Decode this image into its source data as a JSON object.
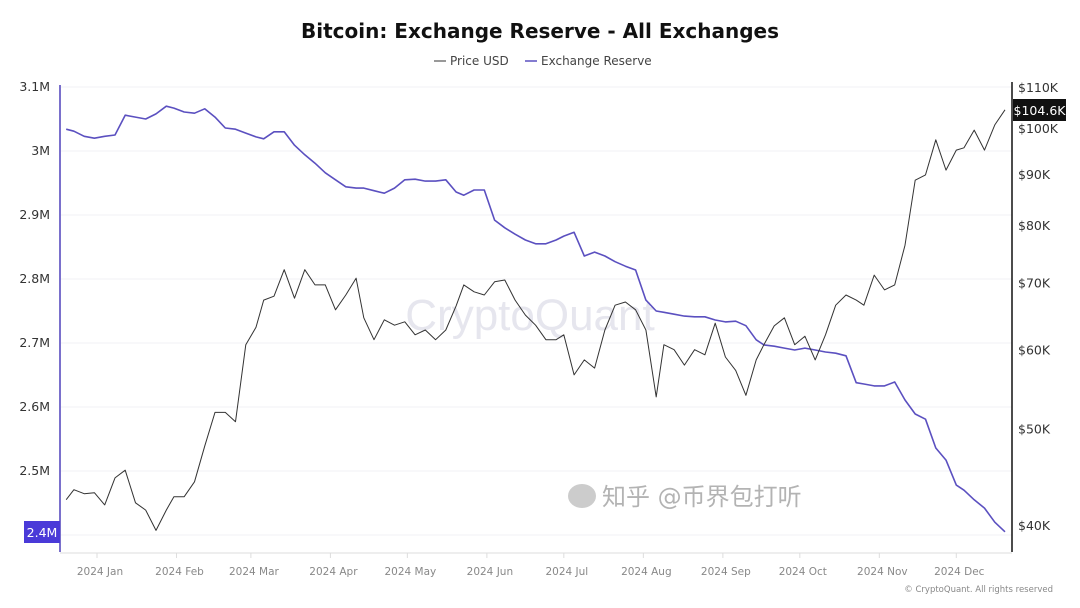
{
  "chart_data": {
    "type": "line",
    "title": "Bitcoin: Exchange Reserve - All Exchanges",
    "legend": [
      "Price USD",
      "Exchange Reserve"
    ],
    "legend_position": "top-center",
    "x_tick_labels": [
      "2024 Jan",
      "2024 Feb",
      "2024 Mar",
      "2024 Apr",
      "2024 May",
      "2024 Jun",
      "2024 Jul",
      "2024 Aug",
      "2024 Sep",
      "2024 Oct",
      "2024 Nov",
      "2024 Dec"
    ],
    "x_tick_dates": [
      "2024-01-01",
      "2024-02-01",
      "2024-03-01",
      "2024-04-01",
      "2024-05-01",
      "2024-06-01",
      "2024-07-01",
      "2024-08-01",
      "2024-09-01",
      "2024-10-01",
      "2024-11-01",
      "2024-12-01"
    ],
    "left_axis": {
      "ticks": [
        "2.4M",
        "2.5M",
        "2.6M",
        "2.7M",
        "2.8M",
        "2.9M",
        "3M",
        "3.1M"
      ],
      "tick_values": [
        2.4,
        2.5,
        2.6,
        2.7,
        2.8,
        2.9,
        3.0,
        3.1
      ],
      "range": [
        2.4,
        3.1
      ],
      "unit": "M BTC",
      "color": "#5b50c0"
    },
    "right_axis": {
      "ticks": [
        "$40K",
        "$50K",
        "$60K",
        "$70K",
        "$80K",
        "$90K",
        "$100K",
        "$110K"
      ],
      "tick_values": [
        40,
        50,
        60,
        70,
        80,
        90,
        100,
        110
      ],
      "range": [
        40,
        110
      ],
      "scale": "log",
      "unit": "K USD"
    },
    "last_reserve_label": "2.4M",
    "last_price_label": "$104.6K",
    "grid": true,
    "colors": {
      "price": "#333333",
      "reserve": "#5b50c0",
      "reserve_badge": "#4a3ad8",
      "price_badge": "#111111"
    },
    "x": [
      "2023-12-20",
      "2023-12-23",
      "2023-12-27",
      "2023-12-31",
      "2024-01-04",
      "2024-01-08",
      "2024-01-12",
      "2024-01-16",
      "2024-01-20",
      "2024-01-24",
      "2024-01-28",
      "2024-01-31",
      "2024-02-04",
      "2024-02-08",
      "2024-02-12",
      "2024-02-16",
      "2024-02-20",
      "2024-02-24",
      "2024-02-28",
      "2024-03-03",
      "2024-03-06",
      "2024-03-10",
      "2024-03-14",
      "2024-03-18",
      "2024-03-22",
      "2024-03-26",
      "2024-03-30",
      "2024-04-03",
      "2024-04-07",
      "2024-04-11",
      "2024-04-14",
      "2024-04-18",
      "2024-04-22",
      "2024-04-26",
      "2024-04-30",
      "2024-05-04",
      "2024-05-08",
      "2024-05-12",
      "2024-05-16",
      "2024-05-20",
      "2024-05-23",
      "2024-05-27",
      "2024-05-31",
      "2024-06-04",
      "2024-06-08",
      "2024-06-12",
      "2024-06-16",
      "2024-06-20",
      "2024-06-24",
      "2024-06-28",
      "2024-07-01",
      "2024-07-05",
      "2024-07-09",
      "2024-07-13",
      "2024-07-17",
      "2024-07-21",
      "2024-07-25",
      "2024-07-29",
      "2024-08-02",
      "2024-08-06",
      "2024-08-09",
      "2024-08-13",
      "2024-08-17",
      "2024-08-21",
      "2024-08-25",
      "2024-08-29",
      "2024-09-02",
      "2024-09-06",
      "2024-09-10",
      "2024-09-14",
      "2024-09-17",
      "2024-09-21",
      "2024-09-25",
      "2024-09-29",
      "2024-10-03",
      "2024-10-07",
      "2024-10-11",
      "2024-10-15",
      "2024-10-19",
      "2024-10-23",
      "2024-10-26",
      "2024-10-30",
      "2024-11-03",
      "2024-11-07",
      "2024-11-11",
      "2024-11-15",
      "2024-11-19",
      "2024-11-23",
      "2024-11-27",
      "2024-12-01",
      "2024-12-04",
      "2024-12-08",
      "2024-12-12",
      "2024-12-16",
      "2024-12-20"
    ],
    "series": [
      {
        "name": "Price USD",
        "axis": "right",
        "values": [
          42.5,
          43.5,
          43.1,
          43.2,
          42.0,
          44.7,
          45.5,
          42.2,
          41.5,
          39.6,
          41.5,
          42.8,
          42.8,
          44.3,
          48.1,
          52.0,
          52.0,
          50.9,
          60.8,
          63.3,
          67.4,
          68.0,
          72.3,
          67.7,
          72.3,
          69.8,
          69.8,
          65.9,
          68.2,
          70.9,
          64.7,
          61.5,
          64.4,
          63.6,
          64.1,
          62.2,
          62.9,
          61.5,
          62.9,
          66.5,
          69.8,
          68.7,
          68.2,
          70.3,
          70.6,
          67.4,
          65.1,
          63.6,
          61.5,
          61.5,
          62.2,
          56.7,
          58.7,
          57.6,
          62.9,
          66.6,
          67.1,
          65.9,
          62.9,
          53.9,
          60.8,
          60.1,
          58.0,
          60.1,
          59.4,
          63.9,
          59.1,
          57.3,
          54.1,
          58.7,
          60.8,
          63.5,
          64.7,
          60.8,
          62.0,
          58.7,
          62.2,
          66.6,
          68.2,
          67.4,
          66.6,
          71.4,
          69.0,
          69.8,
          76.5,
          88.9,
          90.0,
          97.6,
          91.0,
          95.3,
          95.8,
          99.8,
          95.3,
          101.0,
          104.6
        ]
      },
      {
        "name": "Exchange Reserve",
        "axis": "left",
        "values": [
          3.034,
          3.031,
          3.023,
          3.02,
          3.023,
          3.025,
          3.056,
          3.053,
          3.05,
          3.058,
          3.07,
          3.067,
          3.061,
          3.059,
          3.066,
          3.053,
          3.036,
          3.034,
          3.028,
          3.022,
          3.019,
          3.03,
          3.03,
          3.009,
          2.994,
          2.981,
          2.966,
          2.955,
          2.944,
          2.942,
          2.942,
          2.938,
          2.934,
          2.942,
          2.955,
          2.956,
          2.953,
          2.953,
          2.955,
          2.936,
          2.931,
          2.939,
          2.939,
          2.892,
          2.88,
          2.87,
          2.861,
          2.855,
          2.855,
          2.861,
          2.867,
          2.873,
          2.836,
          2.842,
          2.836,
          2.827,
          2.82,
          2.814,
          2.767,
          2.75,
          2.748,
          2.745,
          2.742,
          2.741,
          2.741,
          2.736,
          2.733,
          2.734,
          2.727,
          2.705,
          2.697,
          2.695,
          2.692,
          2.689,
          2.692,
          2.689,
          2.686,
          2.684,
          2.68,
          2.638,
          2.636,
          2.633,
          2.633,
          2.639,
          2.611,
          2.589,
          2.581,
          2.536,
          2.517,
          2.478,
          2.47,
          2.455,
          2.442,
          2.42,
          2.405
        ]
      }
    ]
  },
  "watermark": "CryptoQuant",
  "overlay_watermark": "知乎 @币界包打听",
  "copyright": "© CryptoQuant. All rights reserved"
}
